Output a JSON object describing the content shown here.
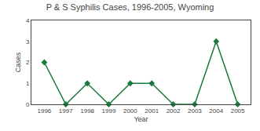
{
  "chart_data": {
    "type": "line",
    "title": "P & S Syphilis Cases, 1996-2005, Wyoming",
    "xlabel": "Year",
    "ylabel": "Cases",
    "x": [
      1996,
      1997,
      1998,
      1999,
      2000,
      2001,
      2002,
      2003,
      2004,
      2005
    ],
    "values": [
      2,
      0,
      1,
      0,
      1,
      1,
      0,
      0,
      3,
      0
    ],
    "color": "#1a7a3c",
    "marker": "diamond",
    "xlim": [
      1995.4,
      2005.6
    ],
    "xticks": [
      1996,
      1997,
      1998,
      1999,
      2000,
      2001,
      2002,
      2003,
      2004,
      2005
    ],
    "ylim": [
      0,
      4
    ],
    "yticks": [
      0,
      1,
      2,
      3,
      4
    ],
    "grid": false
  }
}
